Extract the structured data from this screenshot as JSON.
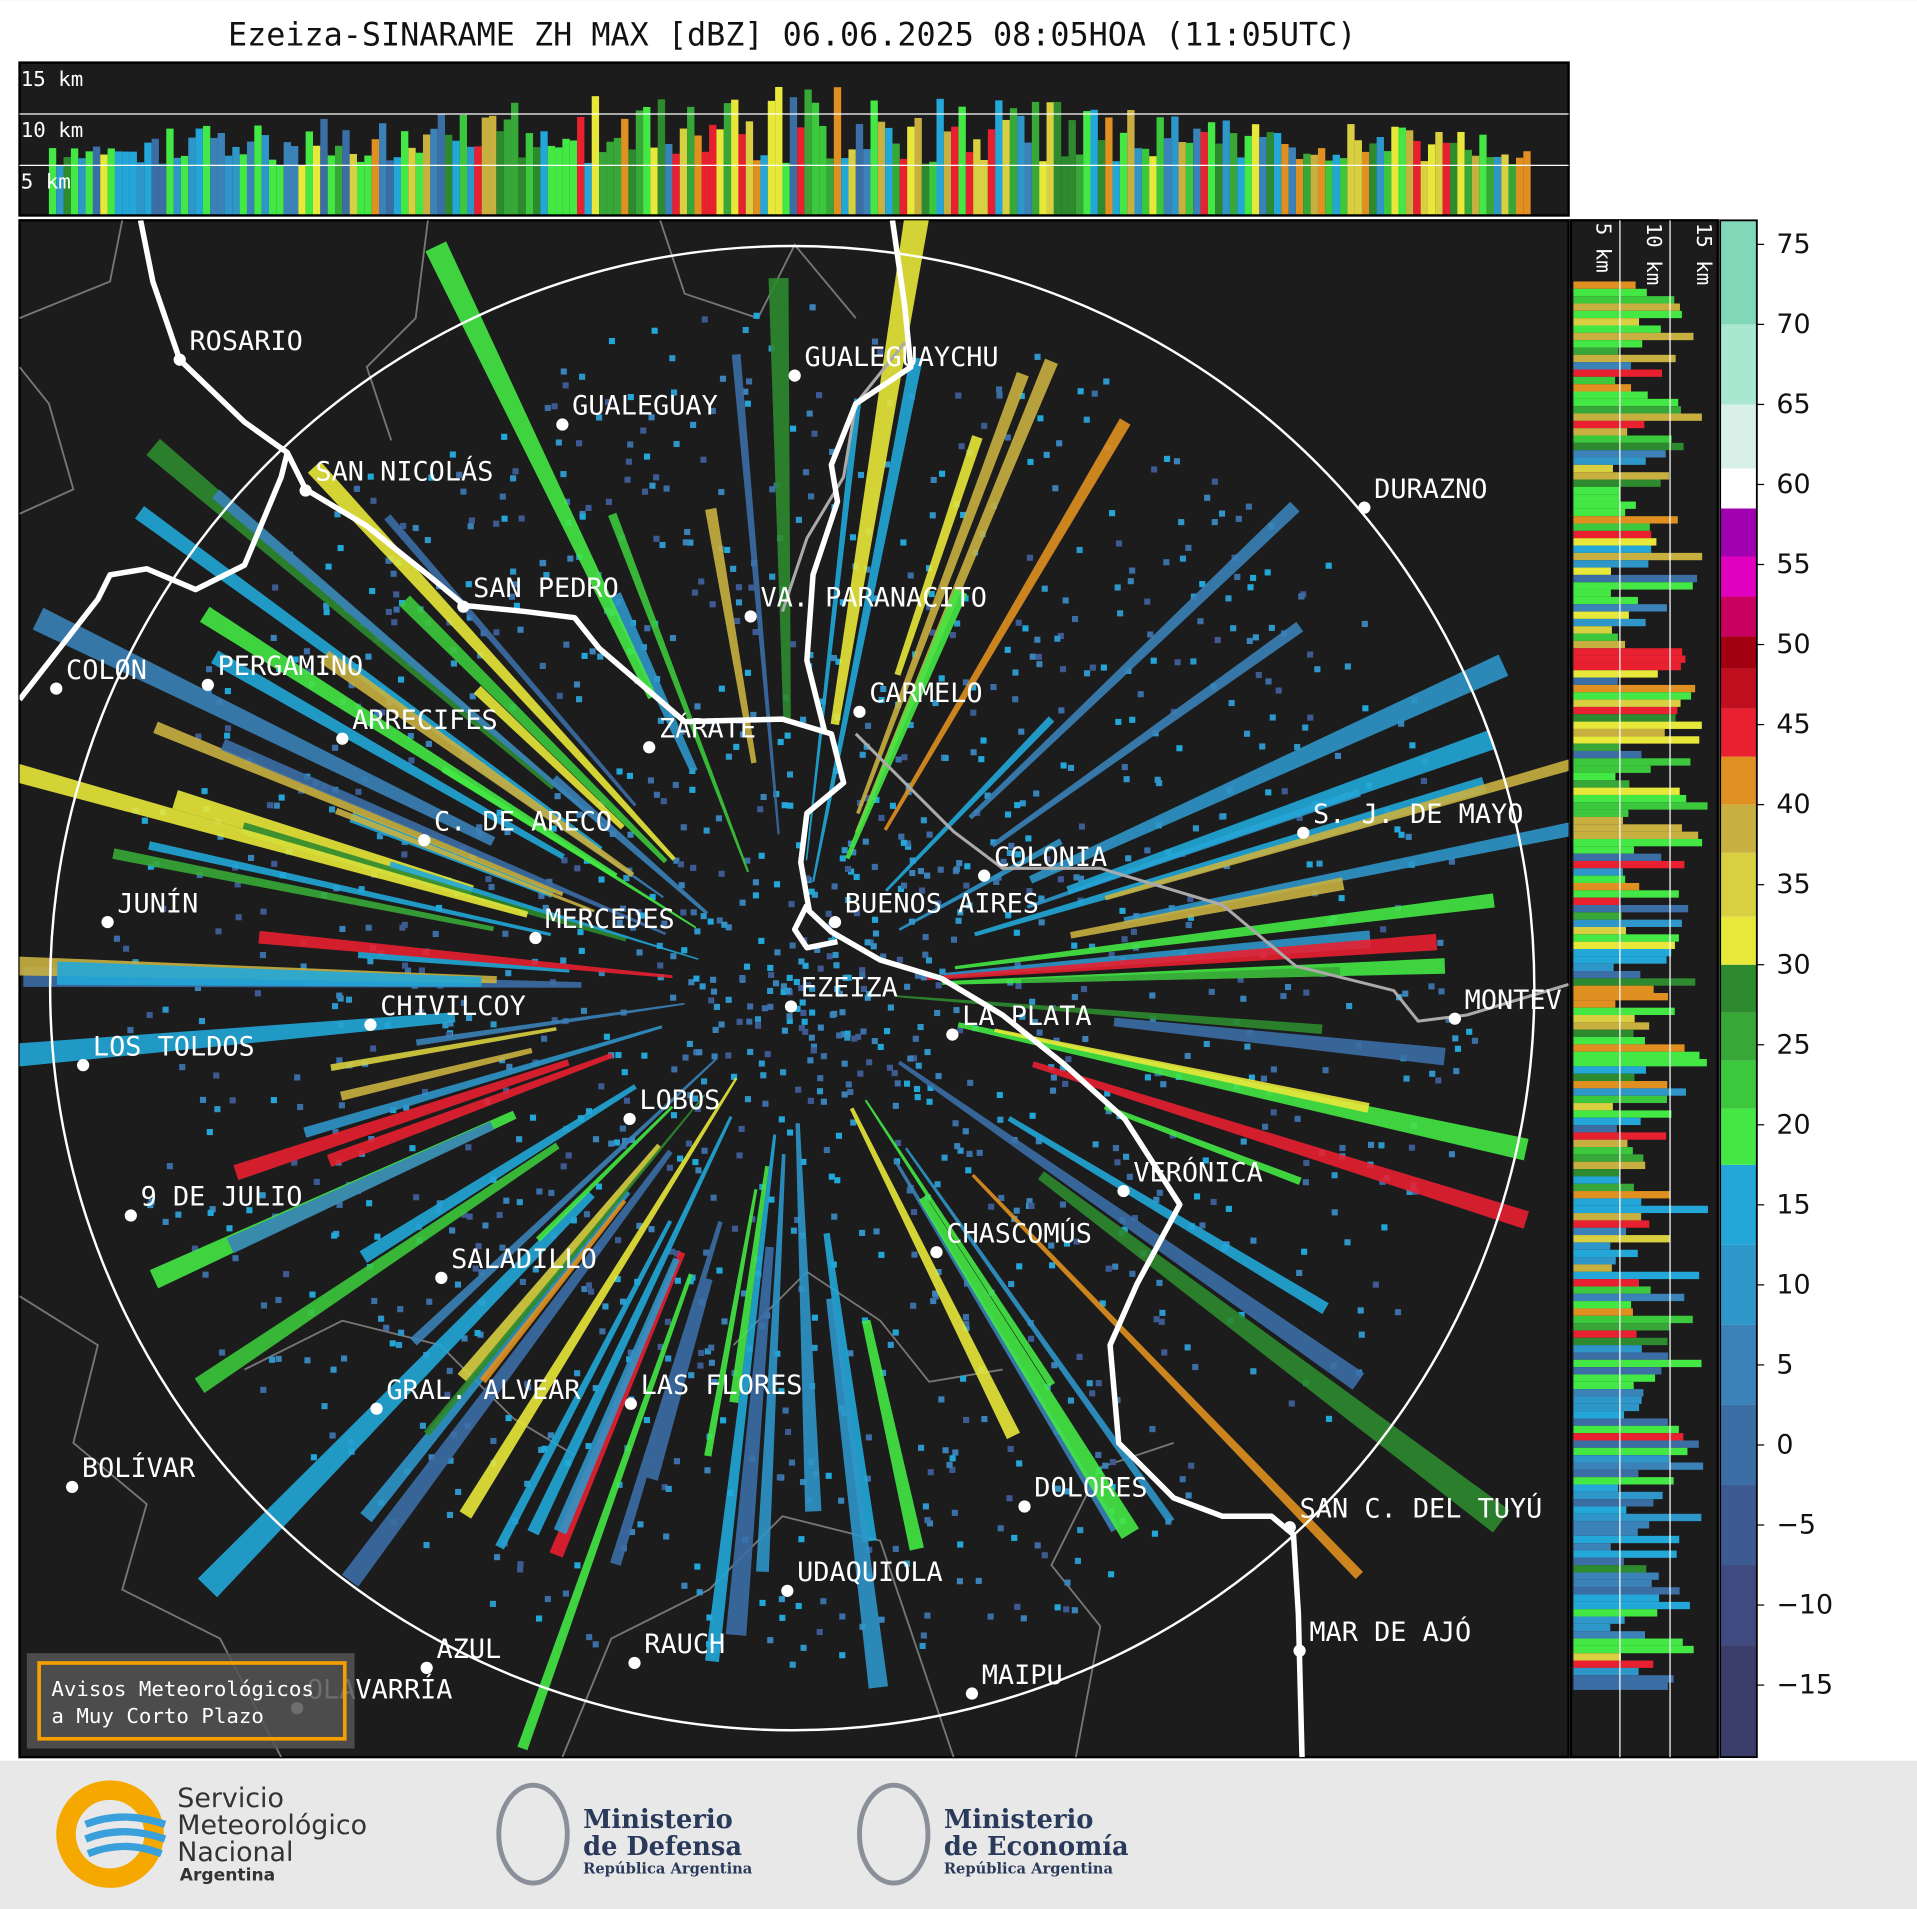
{
  "title": "Ezeiza-SINARAME ZH MAX [dBZ] 06.06.2025 08:05HOA (11:05UTC)",
  "top_panel": {
    "height_labels": [
      "15 km",
      "10 km",
      "5 km"
    ]
  },
  "side_panel": {
    "height_labels": [
      "5 km",
      "10 km",
      "15 km"
    ]
  },
  "cities": [
    "ROSARIO",
    "GUALEGUAYCHU",
    "GUALEGUAY",
    "SAN NICOLÁS",
    "DURAZNO",
    "SAN PEDRO",
    "VA. PARANACITO",
    "COLON",
    "PERGAMINO",
    "CARMELO",
    "ARRECIFES",
    "ZÁRATE",
    "S. J. DE MAYO",
    "C. DE ARECO",
    "COLONIA",
    "BUENOS AIRES",
    "JUNÍN",
    "MERCEDES",
    "EZEIZA",
    "LA PLATA",
    "MONTEV",
    "CHIVILCOY",
    "LOS TOLDOS",
    "LOBOS",
    "VERÓNICA",
    "9 DE JULIO",
    "CHASCOMÚS",
    "SALADILLO",
    "GRAL. ALVEAR",
    "LAS FLORES",
    "BOLÍVAR",
    "DOLORES",
    "SAN C. DEL TUYÚ",
    "UDAQUIOLA",
    "MAR DE AJÓ",
    "RAUCH",
    "AZUL",
    "OLAVARRÍA",
    "MAIPU"
  ],
  "colorbar": {
    "lim": [
      -19.5,
      76.5
    ],
    "ticks": [
      {
        "value": -15,
        "label": "−15"
      },
      {
        "value": -10,
        "label": "−10"
      },
      {
        "value": -5,
        "label": "−5"
      },
      0,
      5,
      10,
      15,
      20,
      25,
      30,
      35,
      40,
      45,
      50,
      55,
      60,
      65,
      70,
      75
    ],
    "bands": [
      {
        "from": -19.5,
        "color": "#3b3d6b"
      },
      {
        "from": -12.5,
        "color": "#3f4a80"
      },
      {
        "from": -7.5,
        "color": "#3e5a92"
      },
      {
        "from": -2.5,
        "color": "#3c6ea6"
      },
      {
        "from": 2.5,
        "color": "#3a82b8"
      },
      {
        "from": 7.5,
        "color": "#2f96c9"
      },
      {
        "from": 12.5,
        "color": "#22a7d8"
      },
      {
        "from": 17.5,
        "color": "#44e844"
      },
      {
        "from": 21,
        "color": "#3cc83c"
      },
      {
        "from": 24,
        "color": "#37a837"
      },
      {
        "from": 27,
        "color": "#2e8a2e"
      },
      {
        "from": 30,
        "color": "#e8e83a"
      },
      {
        "from": 33,
        "color": "#d8d040"
      },
      {
        "from": 37,
        "color": "#c8b040"
      },
      {
        "from": 40,
        "color": "#e09020"
      },
      {
        "from": 43,
        "color": "#e82030"
      },
      {
        "from": 46,
        "color": "#c01020"
      },
      {
        "from": 48.5,
        "color": "#a00010"
      },
      {
        "from": 50.5,
        "color": "#c80060"
      },
      {
        "from": 53,
        "color": "#e000c0"
      },
      {
        "from": 55.5,
        "color": "#a000b0"
      },
      {
        "from": 58.5,
        "color": "#ffffff"
      },
      {
        "from": 61,
        "color": "#d8f0e8"
      },
      {
        "from": 65,
        "color": "#a8e8d0"
      },
      {
        "from": 70,
        "color": "#80d8b8"
      }
    ]
  },
  "warning_box": {
    "lines": [
      "Avisos Meteorológicos",
      "a Muy Corto Plazo"
    ]
  },
  "logos": {
    "smn": {
      "lines": [
        "Servicio",
        "Meteorológico",
        "Nacional"
      ],
      "country": "Argentina"
    },
    "defensa": {
      "lines": [
        "Ministerio",
        "de Defensa"
      ],
      "sub": "República Argentina"
    },
    "economia": {
      "lines": [
        "Ministerio",
        "de Economía"
      ],
      "sub": "República Argentina"
    }
  }
}
